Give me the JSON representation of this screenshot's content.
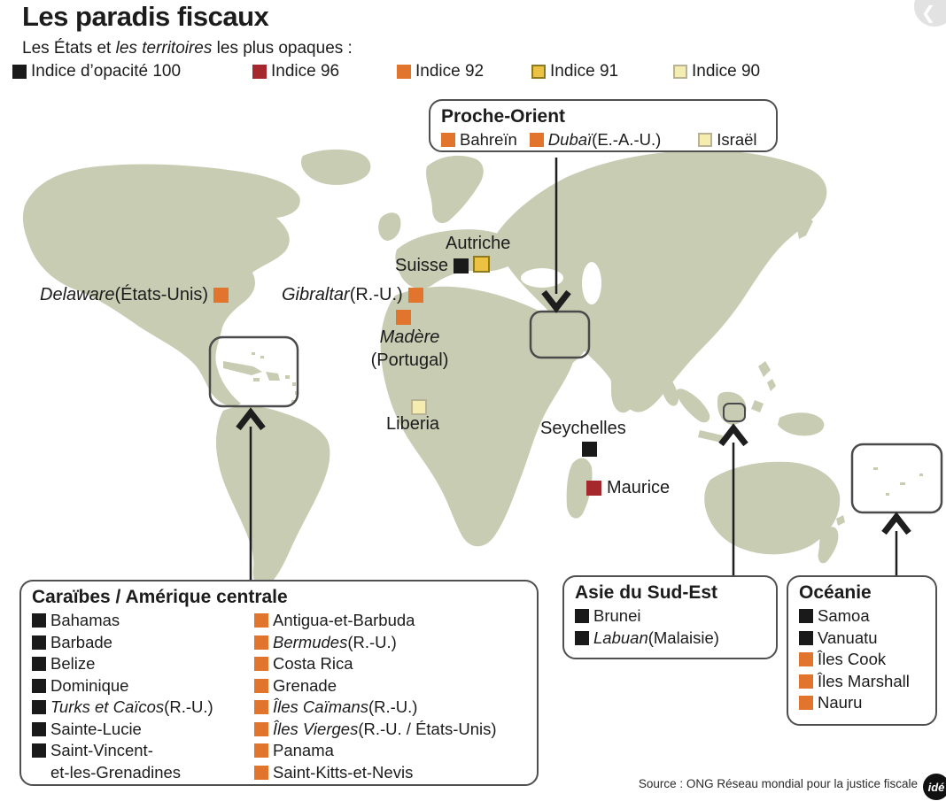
{
  "colors": {
    "index100": "#1a1a1a",
    "index96": "#a5282c",
    "index92": "#e2752e",
    "index91": "#ecc243",
    "index91_border": "#8d7a20",
    "index90": "#f5edb0",
    "index90_border": "#b9b294",
    "land": "#c7ccb3",
    "box_border": "#4f4f4f",
    "text": "#1c1c1c"
  },
  "header": {
    "title": "Les paradis fiscaux",
    "subtitle_prefix": "Les États et ",
    "subtitle_italic": "les territoires",
    "subtitle_suffix": " les plus opaques :"
  },
  "legend": {
    "items": [
      {
        "index": 100,
        "label": "Indice d’opacité 100"
      },
      {
        "index": 96,
        "label": "Indice 96"
      },
      {
        "index": 92,
        "label": "Indice 92"
      },
      {
        "index": 91,
        "label": "Indice 91"
      },
      {
        "index": 90,
        "label": "Indice 90"
      }
    ]
  },
  "boxes": {
    "proche_orient": {
      "title": "Proche-Orient",
      "items": [
        {
          "index": 92,
          "name": "Bahreïn"
        },
        {
          "index": 92,
          "name": "Dubaï",
          "italic": true,
          "suffix": " (E.-A.-U.)"
        },
        {
          "index": 90,
          "name": "Israël"
        }
      ]
    },
    "caraibes": {
      "title": "Caraïbes / Amérique centrale",
      "col1": [
        {
          "index": 100,
          "name": "Bahamas"
        },
        {
          "index": 100,
          "name": "Barbade"
        },
        {
          "index": 100,
          "name": "Belize"
        },
        {
          "index": 100,
          "name": "Dominique"
        },
        {
          "index": 100,
          "name": "Turks et Caïcos",
          "italic": true,
          "suffix": " (R.-U.)"
        },
        {
          "index": 100,
          "name": "Sainte-Lucie"
        },
        {
          "index": 100,
          "name": "Saint-Vincent-\net-les-Grenadines"
        }
      ],
      "col2": [
        {
          "index": 92,
          "name": "Antigua-et-Barbuda"
        },
        {
          "index": 92,
          "name": "Bermudes",
          "italic": true,
          "suffix": " (R.-U.)"
        },
        {
          "index": 92,
          "name": "Costa Rica"
        },
        {
          "index": 92,
          "name": "Grenade"
        },
        {
          "index": 92,
          "name": "Îles Caïmans",
          "italic": true,
          "suffix": " (R.-U.)"
        },
        {
          "index": 92,
          "name": "Îles Vierges",
          "italic": true,
          "suffix": " (R.-U. / États-Unis)"
        },
        {
          "index": 92,
          "name": "Panama"
        },
        {
          "index": 92,
          "name": "Saint-Kitts-et-Nevis"
        }
      ]
    },
    "asie": {
      "title": "Asie du Sud-Est",
      "items": [
        {
          "index": 100,
          "name": "Brunei"
        },
        {
          "index": 100,
          "name": "Labuan",
          "italic": true,
          "suffix": " (Malaisie)"
        }
      ]
    },
    "oceanie": {
      "title": "Océanie",
      "items": [
        {
          "index": 100,
          "name": "Samoa"
        },
        {
          "index": 100,
          "name": "Vanuatu"
        },
        {
          "index": 92,
          "name": "Îles Cook"
        },
        {
          "index": 92,
          "name": "Îles Marshall"
        },
        {
          "index": 92,
          "name": "Nauru"
        }
      ]
    }
  },
  "map_labels": {
    "delaware": {
      "name": "Delaware",
      "suffix": " (États-Unis)",
      "index": 92
    },
    "gibraltar": {
      "name": "Gibraltar",
      "suffix": " (R.-U.)",
      "index": 92
    },
    "madere": {
      "line1": "Madère",
      "line2": "(Portugal)",
      "index": 92
    },
    "autriche": {
      "name": "Autriche",
      "index": 91
    },
    "suisse": {
      "name": "Suisse",
      "index": 100
    },
    "liberia": {
      "name": "Liberia",
      "index": 90
    },
    "seychelles": {
      "name": "Seychelles",
      "index": 100
    },
    "maurice": {
      "name": "Maurice",
      "index": 96
    }
  },
  "source": {
    "text": "Source : ONG Réseau mondial pour la justice fiscale",
    "logo_text": "idé"
  },
  "nav": {
    "prev_icon": "❮"
  }
}
